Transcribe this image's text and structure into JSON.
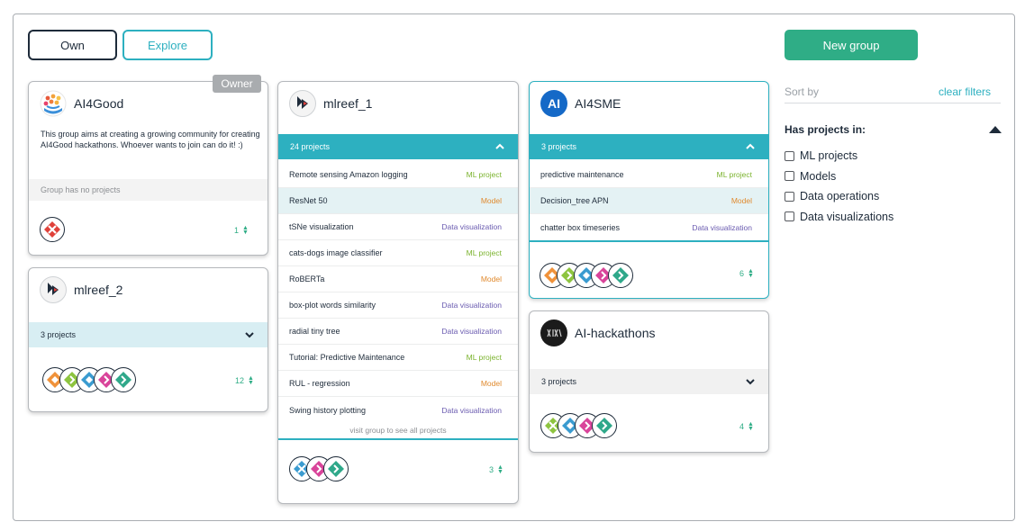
{
  "tabs": {
    "own": "Own",
    "explore": "Explore"
  },
  "new_group_label": "New group",
  "owner_badge": "Owner",
  "colors": {
    "teal": "#2db0c0",
    "green": "#2fad86",
    "navy": "#1e2b3a",
    "ml": "#7bb32e",
    "model": "#e08a2e",
    "dv": "#6a5bb0"
  },
  "groups": {
    "ai4good": {
      "title": "AI4Good",
      "description": "This group aims at creating a growing community for creating AI4Good hackathons. Whoever wants to join can do it! :)",
      "no_projects": "Group has no projects",
      "count": "1"
    },
    "mlreef2": {
      "title": "mlreef_2",
      "projects_label": "3 projects",
      "count": "12"
    },
    "mlreef1": {
      "title": "mlreef_1",
      "projects_label": "24 projects",
      "projects": [
        {
          "name": "Remote sensing Amazon logging",
          "type": "ML project"
        },
        {
          "name": "ResNet 50",
          "type": "Model"
        },
        {
          "name": "tSNe visualization",
          "type": "Data visualization"
        },
        {
          "name": "cats-dogs image classifier",
          "type": "ML project"
        },
        {
          "name": "RoBERTa",
          "type": "Model"
        },
        {
          "name": "box-plot words similarity",
          "type": "Data visualization"
        },
        {
          "name": "radial tiny tree",
          "type": "Data visualization"
        },
        {
          "name": "Tutorial: Predictive Maintenance",
          "type": "ML project"
        },
        {
          "name": "RUL - regression",
          "type": "Model"
        },
        {
          "name": "Swing history plotting",
          "type": "Data visualization"
        }
      ],
      "visit_link": "visit group to see all projects",
      "count": "3"
    },
    "ai4sme": {
      "title": "AI4SME",
      "projects_label": "3 projects",
      "projects": [
        {
          "name": "predictive maintenance",
          "type": "ML project"
        },
        {
          "name": "Decision_tree APN",
          "type": "Model"
        },
        {
          "name": "chatter box timeseries",
          "type": "Data visualization"
        }
      ],
      "count": "6"
    },
    "aihack": {
      "title": "AI-hackathons",
      "projects_label": "3 projects",
      "count": "4"
    }
  },
  "sidebar": {
    "sort_by": "Sort by",
    "clear_filters": "clear filters",
    "has_projects_in": "Has projects in:",
    "filters": [
      "ML projects",
      "Models",
      "Data operations",
      "Data visualizations"
    ]
  }
}
